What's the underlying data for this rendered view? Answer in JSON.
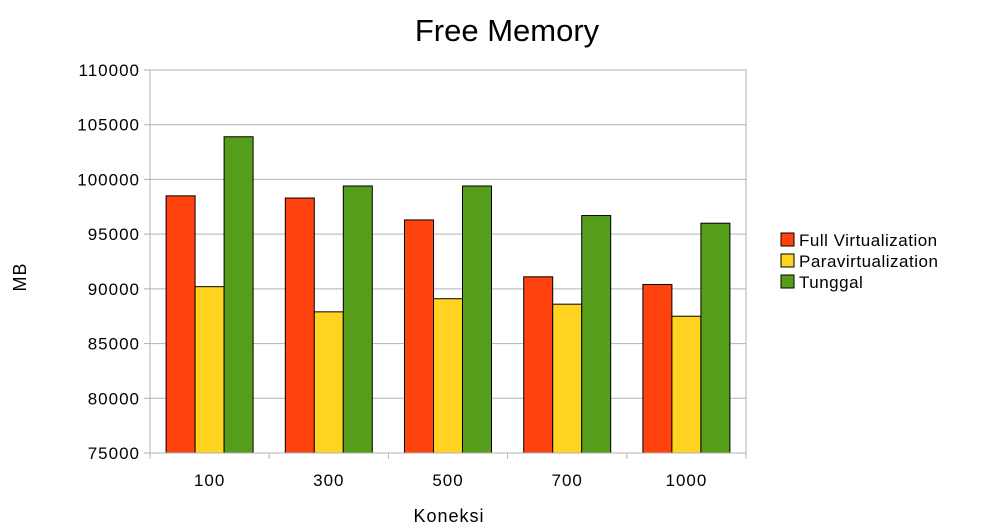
{
  "chart_data": {
    "type": "bar",
    "title": "Free Memory",
    "xlabel": "Koneksi",
    "ylabel": "MB",
    "categories": [
      "100",
      "300",
      "500",
      "700",
      "1000"
    ],
    "ylim": [
      75000,
      110000
    ],
    "yticks": [
      75000,
      80000,
      85000,
      90000,
      95000,
      100000,
      105000,
      110000
    ],
    "ytick_labels": [
      "75000",
      "80000",
      "85000",
      "90000",
      "95000",
      "100000",
      "105000",
      "110000"
    ],
    "grid": true,
    "legend_position": "right",
    "series": [
      {
        "name": "Full Virtualization",
        "color": "#ff420e",
        "values": [
          98500,
          98300,
          96300,
          91100,
          90400
        ]
      },
      {
        "name": "Paravirtualization",
        "color": "#ffd320",
        "values": [
          90200,
          87900,
          89100,
          88600,
          87500
        ]
      },
      {
        "name": "Tunggal",
        "color": "#579d1c",
        "values": [
          103900,
          99400,
          99400,
          96700,
          96000
        ]
      }
    ]
  }
}
